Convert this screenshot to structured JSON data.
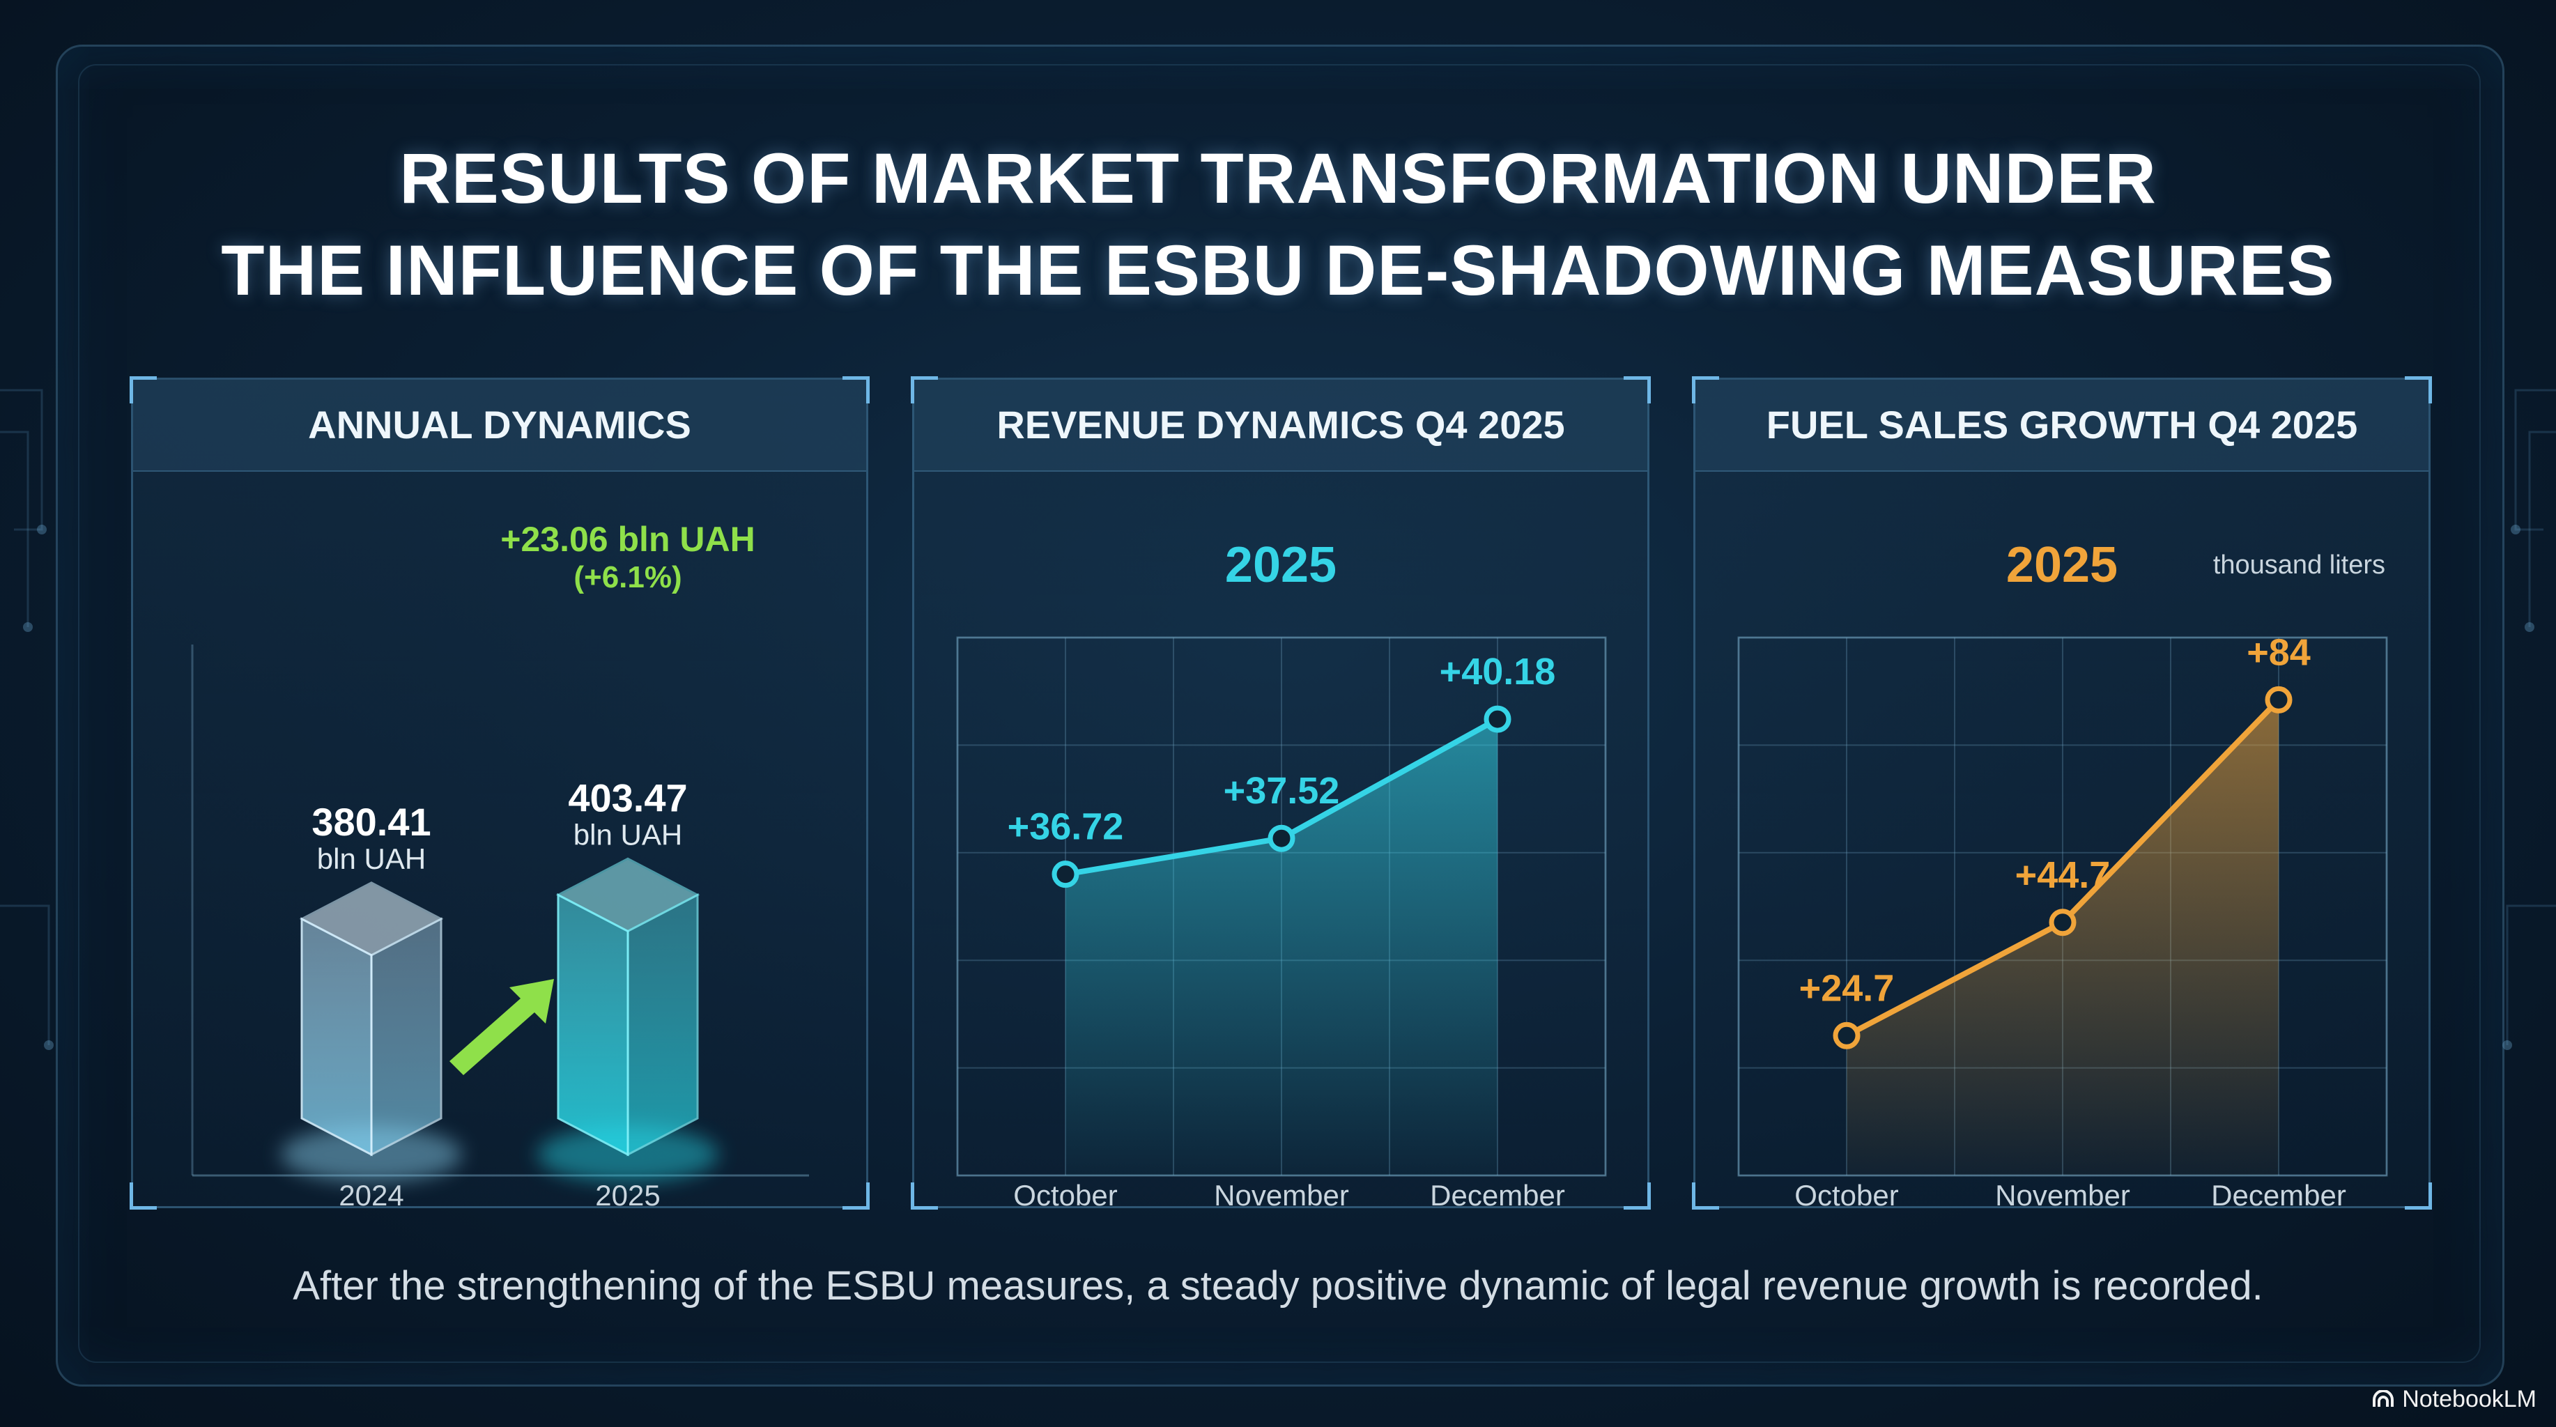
{
  "header": {
    "title_line1": "RESULTS OF MARKET TRANSFORMATION UNDER",
    "title_line2": "THE INFLUENCE OF THE ESBU DE-SHADOWING MEASURES"
  },
  "caption": "After the strengthening of the ESBU measures, a steady positive dynamic of legal revenue growth is recorded.",
  "brand": "NotebookLM",
  "colors": {
    "cyan": "#35d4e6",
    "orange": "#f0a43a",
    "green": "#8fe04a",
    "bg": "#0b1f33"
  },
  "chart_data": [
    {
      "type": "bar",
      "title": "ANNUAL DYNAMICS",
      "categories": [
        "2024",
        "2025"
      ],
      "values": [
        380.41,
        403.47
      ],
      "value_labels": [
        "380.41",
        "403.47"
      ],
      "unit_label": "bln UAH",
      "delta_label": "+23.06 bln UAH",
      "delta_pct_label": "(+6.1%)",
      "ylim": [
        0,
        470
      ]
    },
    {
      "type": "line",
      "title": "REVENUE DYNAMICS Q4 2025",
      "subtitle": "2025",
      "categories": [
        "October",
        "November",
        "December"
      ],
      "values": [
        36.72,
        37.52,
        40.18
      ],
      "value_labels": [
        "+36.72",
        "+37.52",
        "+40.18"
      ],
      "ylim": [
        30,
        42
      ],
      "grid": true,
      "color": "#35d4e6"
    },
    {
      "type": "line",
      "title": "FUEL SALES GROWTH Q4 2025",
      "subtitle": "2025",
      "unit_label": "thousand liters",
      "categories": [
        "October",
        "November",
        "December"
      ],
      "values": [
        24.7,
        44.7,
        84
      ],
      "value_labels": [
        "+24.7",
        "+44.7",
        "+84"
      ],
      "ylim": [
        0,
        95
      ],
      "grid": true,
      "color": "#f0a43a"
    }
  ]
}
